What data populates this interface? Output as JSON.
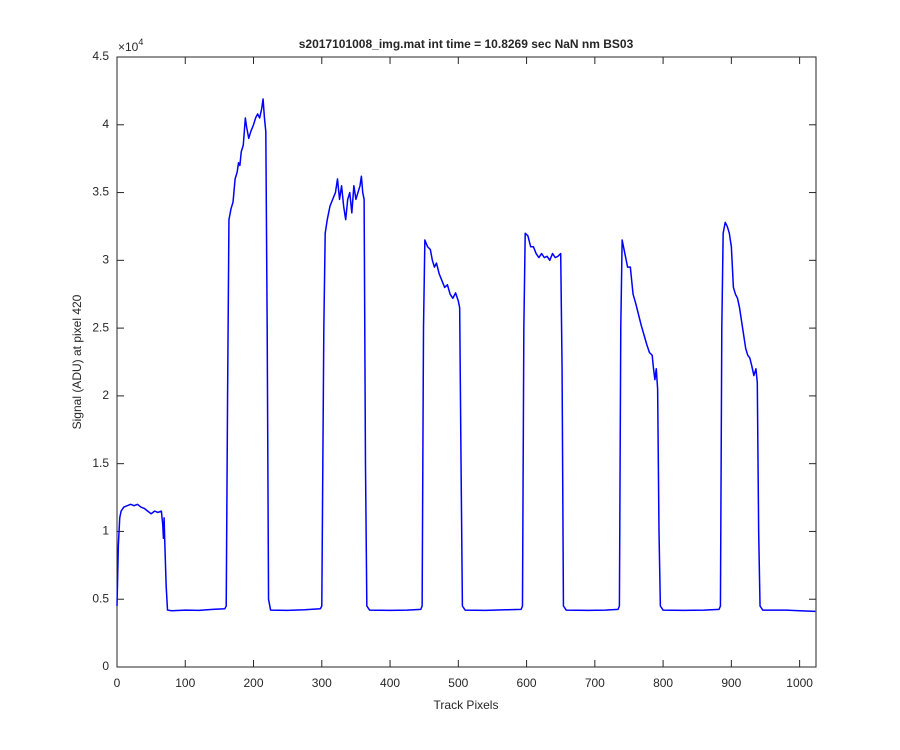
{
  "chart_data": {
    "type": "line",
    "title": "s2017101008_img.mat int time = 10.8269 sec  NaN nm BS03",
    "xlabel": "Track Pixels",
    "ylabel": "Signal (ADU) at pixel 420",
    "y_multiplier": {
      "base": "×10",
      "exponent": "4"
    },
    "color": "#0000ff",
    "xlim": [
      0,
      1024
    ],
    "ylim": [
      0,
      4.5
    ],
    "xticks": [
      0,
      100,
      200,
      300,
      400,
      500,
      600,
      700,
      800,
      900,
      1000
    ],
    "yticks": [
      0,
      0.5,
      1,
      1.5,
      2,
      2.5,
      3,
      3.5,
      4,
      4.5
    ],
    "x": [
      0,
      2,
      4,
      6,
      10,
      15,
      20,
      25,
      30,
      35,
      40,
      45,
      50,
      55,
      60,
      65,
      67,
      68,
      69,
      70,
      72,
      74,
      80,
      100,
      120,
      140,
      158,
      160,
      162,
      164,
      167,
      170,
      173,
      176,
      178,
      180,
      182,
      185,
      188,
      190,
      193,
      196,
      200,
      203,
      206,
      209,
      212,
      214,
      216,
      218,
      220,
      222,
      225,
      250,
      275,
      298,
      300,
      303,
      305,
      308,
      312,
      316,
      320,
      323,
      326,
      329,
      332,
      335,
      338,
      341,
      344,
      347,
      350,
      353,
      356,
      358,
      360,
      362,
      364,
      366,
      370,
      400,
      425,
      445,
      447,
      449,
      451,
      455,
      459,
      462,
      465,
      468,
      472,
      476,
      480,
      484,
      488,
      492,
      496,
      500,
      502,
      504,
      506,
      510,
      540,
      570,
      592,
      594,
      596,
      598,
      602,
      606,
      610,
      614,
      618,
      622,
      626,
      630,
      634,
      638,
      642,
      646,
      650,
      652,
      654,
      658,
      690,
      715,
      734,
      736,
      738,
      740,
      744,
      748,
      752,
      756,
      760,
      764,
      768,
      772,
      776,
      780,
      784,
      786,
      788,
      790,
      792,
      794,
      796,
      800,
      830,
      860,
      882,
      884,
      886,
      888,
      891,
      894,
      897,
      900,
      903,
      906,
      909,
      912,
      915,
      918,
      921,
      924,
      927,
      930,
      933,
      936,
      938,
      940,
      942,
      946,
      980,
      1000,
      1023
    ],
    "values": [
      0.45,
      0.9,
      1.1,
      1.15,
      1.18,
      1.19,
      1.2,
      1.19,
      1.2,
      1.18,
      1.17,
      1.15,
      1.13,
      1.15,
      1.14,
      1.15,
      1.05,
      0.95,
      1.1,
      0.92,
      0.6,
      0.42,
      0.415,
      0.42,
      0.418,
      0.425,
      0.43,
      0.45,
      2.0,
      3.3,
      3.38,
      3.43,
      3.6,
      3.65,
      3.72,
      3.7,
      3.8,
      3.85,
      4.05,
      3.98,
      3.9,
      3.95,
      4.0,
      4.05,
      4.08,
      4.05,
      4.12,
      4.19,
      4.05,
      3.95,
      2.5,
      0.5,
      0.42,
      0.418,
      0.422,
      0.43,
      0.45,
      2.5,
      3.2,
      3.3,
      3.4,
      3.45,
      3.5,
      3.6,
      3.45,
      3.55,
      3.4,
      3.3,
      3.45,
      3.5,
      3.35,
      3.55,
      3.45,
      3.5,
      3.55,
      3.62,
      3.5,
      3.45,
      1.5,
      0.45,
      0.42,
      0.418,
      0.42,
      0.425,
      0.45,
      2.5,
      3.15,
      3.1,
      3.08,
      3.0,
      2.95,
      2.98,
      2.9,
      2.85,
      2.8,
      2.82,
      2.75,
      2.72,
      2.76,
      2.7,
      2.65,
      1.5,
      0.45,
      0.42,
      0.418,
      0.422,
      0.425,
      0.45,
      2.5,
      3.2,
      3.18,
      3.1,
      3.1,
      3.05,
      3.02,
      3.05,
      3.02,
      3.03,
      3.0,
      3.05,
      3.02,
      3.03,
      3.05,
      2.2,
      0.45,
      0.42,
      0.418,
      0.42,
      0.425,
      0.45,
      2.5,
      3.15,
      3.05,
      2.95,
      2.95,
      2.75,
      2.68,
      2.6,
      2.52,
      2.45,
      2.38,
      2.32,
      2.3,
      2.2,
      2.12,
      2.2,
      2.05,
      1.0,
      0.45,
      0.42,
      0.418,
      0.42,
      0.425,
      0.45,
      2.5,
      3.2,
      3.28,
      3.25,
      3.2,
      3.1,
      2.8,
      2.75,
      2.72,
      2.65,
      2.55,
      2.45,
      2.35,
      2.3,
      2.28,
      2.22,
      2.15,
      2.2,
      2.1,
      1.0,
      0.45,
      0.42,
      0.42,
      0.415,
      0.41
    ]
  }
}
